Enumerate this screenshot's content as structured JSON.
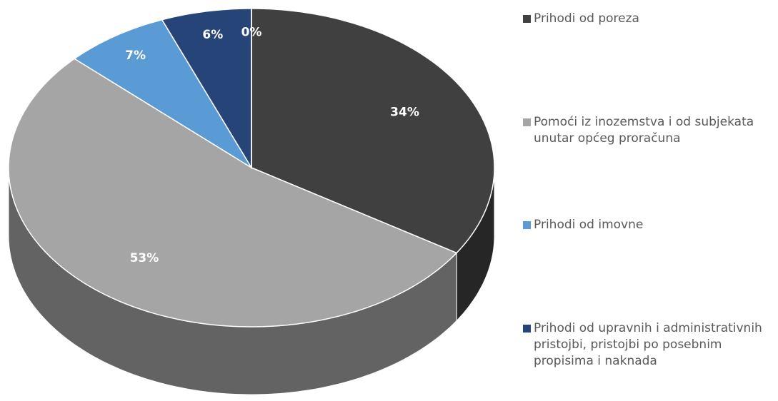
{
  "chart_data": {
    "type": "pie3d",
    "categories": [
      "Prihodi od poreza",
      "Pomoći iz inozemstva i od subjekata unutar općeg proračuna",
      "Prihodi od imovne",
      "Prihodi od upravnih i administrativnih pristojbi, pristojbi po posebnim propisima i naknada",
      null
    ],
    "values": [
      34,
      53,
      7,
      6,
      0
    ],
    "value_labels": [
      "34%",
      "53%",
      "7%",
      "6%",
      "0%"
    ],
    "colors": [
      "#404040",
      "#a5a5a5",
      "#5b9bd5",
      "#264478",
      "#ffffff"
    ],
    "legend": "right"
  }
}
